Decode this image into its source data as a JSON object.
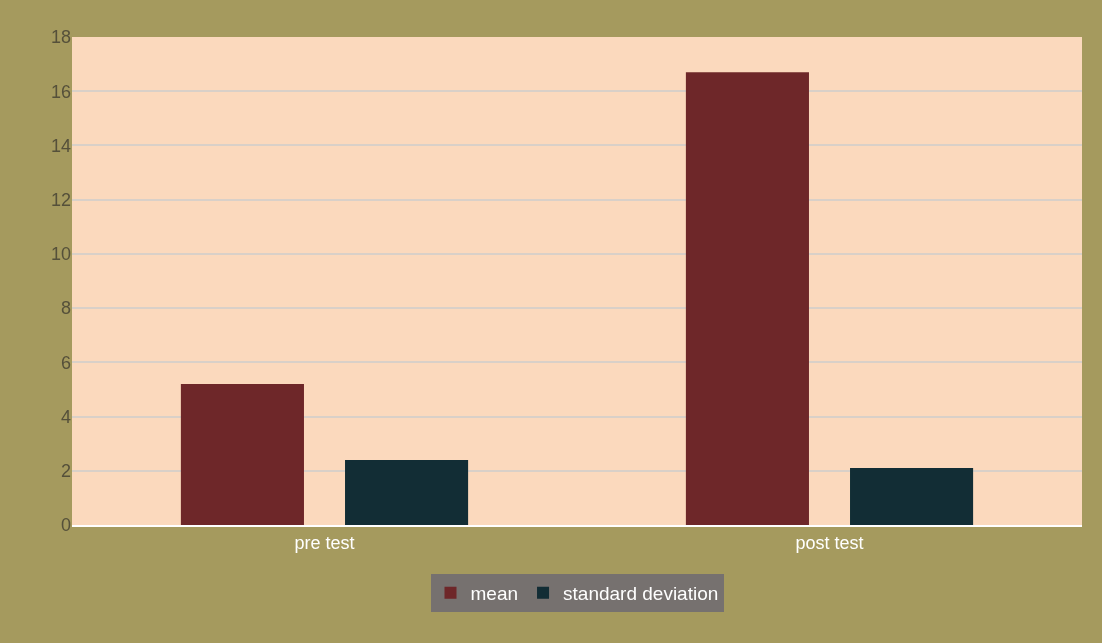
{
  "chart_data": {
    "type": "bar",
    "categories": [
      "pre test",
      "post test"
    ],
    "series": [
      {
        "name": "mean",
        "color": "#6e2729",
        "values": [
          5.2,
          16.7
        ]
      },
      {
        "name": "standard deviation",
        "color": "#122d35",
        "values": [
          2.4,
          2.1
        ]
      }
    ],
    "ylim": [
      0,
      18
    ],
    "yticks": [
      0,
      2,
      4,
      6,
      8,
      10,
      12,
      14,
      16,
      18
    ],
    "grid": "y",
    "legend": "bottom"
  }
}
